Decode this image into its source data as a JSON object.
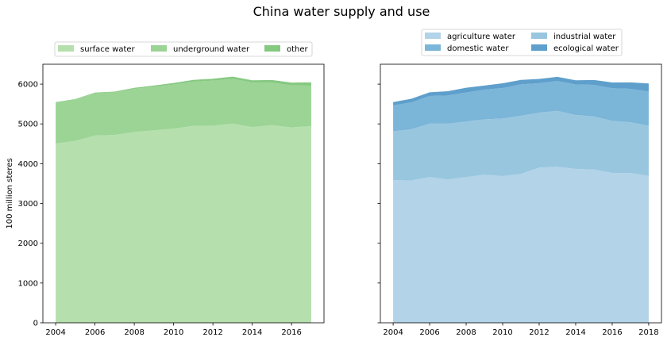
{
  "figure": {
    "title": "China water supply and use"
  },
  "chart_data": [
    {
      "type": "area",
      "stacked": true,
      "title": "",
      "xlabel": "",
      "ylabel": "100 million steres",
      "x": [
        2004,
        2005,
        2006,
        2007,
        2008,
        2009,
        2010,
        2011,
        2012,
        2013,
        2014,
        2015,
        2016,
        2017
      ],
      "xticks": [
        2004,
        2006,
        2008,
        2010,
        2012,
        2014,
        2016
      ],
      "yticks": [
        0,
        1000,
        2000,
        3000,
        4000,
        5000,
        6000
      ],
      "xlim": [
        2003.35,
        2017.65
      ],
      "ylim": [
        0,
        6500
      ],
      "legend": {
        "placement": "top-center",
        "columns": 3
      },
      "series": [
        {
          "name": "surface water",
          "color": "#b5e0ad",
          "values": [
            4505,
            4573,
            4707,
            4723,
            4797,
            4839,
            4881,
            4953,
            4953,
            5007,
            4921,
            4970,
            4912,
            4945
          ]
        },
        {
          "name": "underground water",
          "color": "#9bd495",
          "values": [
            1033,
            1039,
            1066,
            1070,
            1085,
            1095,
            1107,
            1109,
            1134,
            1126,
            1117,
            1069,
            1057,
            1017
          ]
        },
        {
          "name": "other",
          "color": "#86c981",
          "values": [
            10,
            12,
            15,
            20,
            26,
            30,
            40,
            45,
            50,
            55,
            57,
            64,
            71,
            83
          ]
        }
      ]
    },
    {
      "type": "area",
      "stacked": true,
      "title": "",
      "xlabel": "",
      "ylabel": "",
      "x": [
        2004,
        2005,
        2006,
        2007,
        2008,
        2009,
        2010,
        2011,
        2012,
        2013,
        2014,
        2015,
        2016,
        2017,
        2018
      ],
      "xticks": [
        2004,
        2006,
        2008,
        2010,
        2012,
        2014,
        2016,
        2018
      ],
      "xlim": [
        2003.3,
        2018.7
      ],
      "ylim": [
        0,
        6500
      ],
      "legend": {
        "placement": "top-center",
        "columns": 2
      },
      "series": [
        {
          "name": "agriculture water",
          "color": "#b3d3e8",
          "values": [
            3586,
            3580,
            3664,
            3602,
            3663,
            3723,
            3689,
            3743,
            3903,
            3922,
            3869,
            3852,
            3768,
            3766,
            3693
          ]
        },
        {
          "name": "industrial water",
          "color": "#98c6df",
          "values": [
            1229,
            1285,
            1344,
            1404,
            1397,
            1391,
            1447,
            1462,
            1380,
            1406,
            1356,
            1335,
            1308,
            1277,
            1262
          ]
        },
        {
          "name": "domestic water",
          "color": "#7bb5d8",
          "values": [
            651,
            675,
            694,
            710,
            729,
            748,
            766,
            790,
            740,
            750,
            767,
            794,
            822,
            838,
            860
          ]
        },
        {
          "name": "ecological water",
          "color": "#5e9fcc",
          "values": [
            82,
            93,
            93,
            105,
            120,
            103,
            120,
            112,
            109,
            106,
            103,
            123,
            143,
            162,
            201
          ]
        }
      ]
    }
  ]
}
